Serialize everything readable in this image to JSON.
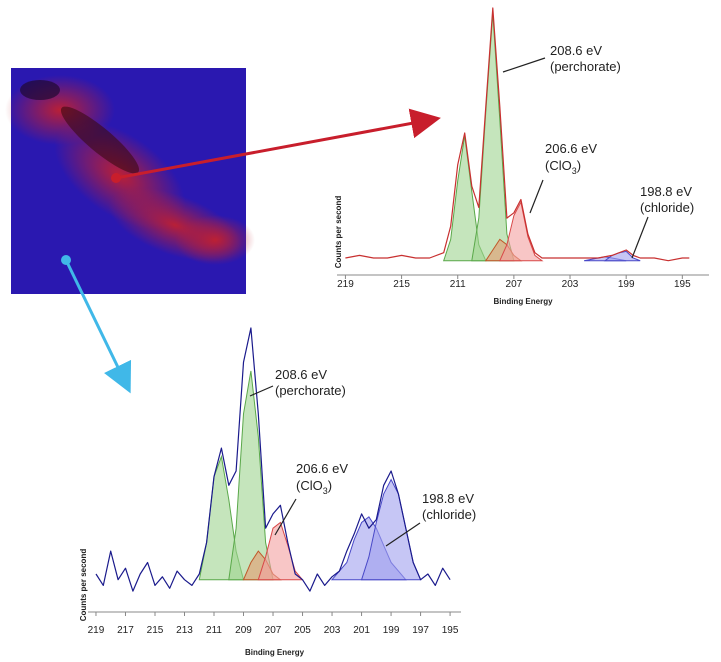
{
  "chart_data": [
    {
      "type": "line",
      "x_label": "Binding Energy",
      "y_label": "Counts per second",
      "xlim": [
        219.6,
        193.1
      ],
      "ylim": [
        0,
        100
      ],
      "xticks": [
        219,
        215,
        211,
        207,
        203,
        199,
        195
      ],
      "series": [
        {
          "kind": "area",
          "color": "#5aa84a",
          "fill": "#9fd38f",
          "x": [
            212,
            211.5,
            211,
            210.5,
            210,
            209.5,
            209
          ],
          "values": [
            2,
            10,
            32,
            49,
            28,
            8,
            2
          ]
        },
        {
          "kind": "area",
          "color": "#5aa84a",
          "fill": "#9fd38f",
          "x": [
            210,
            209.5,
            209,
            208.5,
            208,
            207.5,
            207
          ],
          "values": [
            2,
            18,
            58,
            95,
            55,
            12,
            2
          ]
        },
        {
          "kind": "area",
          "color": "#c0582a",
          "fill": "#e59a70",
          "x": [
            209,
            208.5,
            208,
            207.5,
            207,
            206.5
          ],
          "values": [
            2,
            6,
            10,
            8,
            4,
            2
          ]
        },
        {
          "kind": "area",
          "color": "#d84848",
          "fill": "#f4a0a0",
          "x": [
            208,
            207.5,
            207,
            206.5,
            206,
            205.5,
            205
          ],
          "values": [
            2,
            8,
            19,
            24,
            11,
            4,
            2
          ]
        },
        {
          "kind": "area",
          "color": "#4848c8",
          "fill": "#a0a0ee",
          "x": [
            202,
            201,
            200.5,
            200,
            199
          ],
          "values": [
            2,
            3,
            3.5,
            3,
            2
          ]
        },
        {
          "kind": "area",
          "color": "#4848c8",
          "fill": "#a0a0ee",
          "x": [
            200.5,
            200,
            199.5,
            199,
            198.5,
            198
          ],
          "values": [
            2,
            4,
            5,
            5.5,
            3,
            2
          ]
        },
        {
          "kind": "line",
          "color": "#c83030",
          "x": [
            219,
            218,
            217,
            216,
            215,
            214,
            213,
            212,
            211.5,
            211,
            210.5,
            210,
            209.5,
            209,
            208.5,
            208,
            207.5,
            207,
            206.5,
            206,
            205.5,
            205,
            204,
            203,
            202,
            201,
            200,
            199.5,
            199,
            198.5,
            198,
            197,
            196,
            195,
            194.5
          ],
          "values": [
            3,
            4,
            3,
            3,
            4,
            3,
            3,
            5,
            15,
            38,
            50,
            30,
            22,
            60,
            97,
            60,
            18,
            20,
            25,
            12,
            5,
            3,
            3,
            3,
            3,
            3,
            4,
            5,
            6,
            4,
            3,
            3,
            2,
            3,
            3
          ]
        }
      ],
      "annotations": [
        {
          "label": "208.6 eV",
          "detail": "(perchorate)"
        },
        {
          "label": "206.6 eV",
          "detail": {
            "text": "(ClO",
            "sub": "3",
            "end": ")"
          }
        },
        {
          "label": "198.8 eV",
          "detail": "(chloride)"
        }
      ]
    },
    {
      "type": "line",
      "x_label": "Binding Energy",
      "y_label": "Counts per second",
      "xlim": [
        219.54,
        194.26
      ],
      "ylim": [
        0,
        100
      ],
      "xticks": [
        219,
        217,
        215,
        213,
        211,
        209,
        207,
        205,
        203,
        201,
        199,
        197,
        195
      ],
      "series": [
        {
          "kind": "area",
          "color": "#5aa84a",
          "fill": "#9fd38f",
          "x": [
            212,
            211.5,
            211,
            210.5,
            210,
            209.5,
            209
          ],
          "values": [
            12,
            25,
            48,
            55,
            40,
            22,
            12
          ]
        },
        {
          "kind": "area",
          "color": "#5aa84a",
          "fill": "#9fd38f",
          "x": [
            210,
            209.5,
            209,
            208.5,
            208,
            207.5,
            207
          ],
          "values": [
            12,
            30,
            70,
            85,
            62,
            25,
            12
          ]
        },
        {
          "kind": "area",
          "color": "#c0582a",
          "fill": "#e59a70",
          "x": [
            209,
            208.5,
            208,
            207.5,
            207,
            206.5
          ],
          "values": [
            12,
            18,
            22,
            19,
            14,
            12
          ]
        },
        {
          "kind": "area",
          "color": "#d84848",
          "fill": "#f4a0a0",
          "x": [
            208,
            207.5,
            207,
            206.5,
            206,
            205.5,
            205
          ],
          "values": [
            12,
            20,
            30,
            32,
            24,
            15,
            12
          ]
        },
        {
          "kind": "area",
          "color": "#4848c8",
          "fill": "#a0a0ee",
          "x": [
            203,
            202,
            201.5,
            201,
            200.5,
            200,
            199.5,
            199,
            198
          ],
          "values": [
            12,
            18,
            26,
            32,
            34,
            30,
            24,
            18,
            12
          ]
        },
        {
          "kind": "area",
          "color": "#4848c8",
          "fill": "#a0a0ee",
          "x": [
            201,
            200.5,
            200,
            199.5,
            199,
            198.5,
            198,
            197.5,
            197
          ],
          "values": [
            12,
            20,
            32,
            42,
            47,
            42,
            30,
            18,
            12
          ]
        },
        {
          "kind": "line",
          "color": "#1a1a8c",
          "x": [
            219,
            218.5,
            218,
            217.5,
            217,
            216.5,
            216,
            215.5,
            215,
            214.5,
            214,
            213.5,
            213,
            212.5,
            212,
            211.5,
            211,
            210.5,
            210,
            209.5,
            209,
            208.5,
            208,
            207.5,
            207,
            206.5,
            206,
            205.5,
            205,
            204.5,
            204,
            203.5,
            203,
            202.5,
            202,
            201.5,
            201,
            200.5,
            200,
            199.5,
            199,
            198.5,
            198,
            197.5,
            197,
            196.5,
            196,
            195.5,
            195
          ],
          "values": [
            14,
            10,
            22,
            12,
            16,
            8,
            14,
            18,
            10,
            13,
            9,
            15,
            12,
            10,
            14,
            25,
            48,
            58,
            45,
            50,
            88,
            100,
            70,
            30,
            35,
            38,
            25,
            14,
            12,
            8,
            14,
            10,
            13,
            15,
            22,
            28,
            35,
            30,
            33,
            45,
            50,
            42,
            30,
            18,
            12,
            14,
            10,
            16,
            12
          ]
        }
      ],
      "annotations": [
        {
          "label": "208.6 eV",
          "detail": "(perchorate)"
        },
        {
          "label": "206.6 eV",
          "detail": {
            "text": "(ClO",
            "sub": "3",
            "end": ")"
          }
        },
        {
          "label": "198.8 eV",
          "detail": "(chloride)"
        }
      ]
    }
  ]
}
